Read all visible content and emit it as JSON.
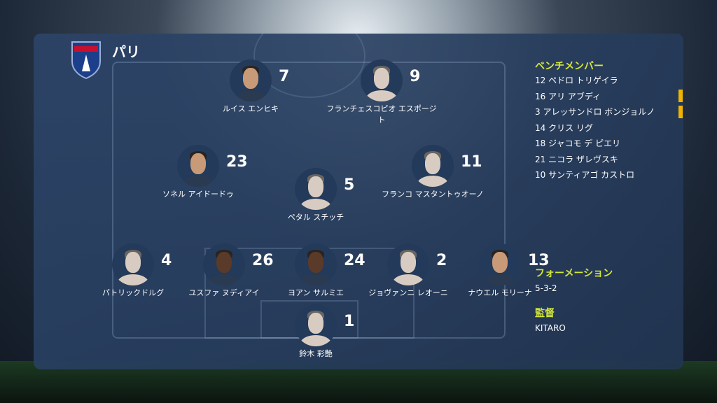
{
  "team": {
    "name": "パリ",
    "logo_text": "PARIS FC"
  },
  "players": [
    {
      "number": "7",
      "name": "ルイス エンヒキ",
      "photo": true
    },
    {
      "number": "9",
      "name": "フランチェスコピオ エスポージト",
      "photo": false
    },
    {
      "number": "23",
      "name": "ソネル アイドードゥ",
      "photo": true
    },
    {
      "number": "11",
      "name": "フランコ マスタントゥオーノ",
      "photo": false
    },
    {
      "number": "5",
      "name": "ペタル スチッチ",
      "photo": false
    },
    {
      "number": "4",
      "name": "パトリックドルグ",
      "photo": false
    },
    {
      "number": "26",
      "name": "ユスファ ヌディアイ",
      "photo": true
    },
    {
      "number": "24",
      "name": "ヨアン サルミエ",
      "photo": true
    },
    {
      "number": "2",
      "name": "ジョヴァンニ レオーニ",
      "photo": false
    },
    {
      "number": "13",
      "name": "ナウエル モリーナ",
      "photo": true
    },
    {
      "number": "1",
      "name": "鈴木 彩艶",
      "photo": false
    }
  ],
  "bench": {
    "title": "ベンチメンバー",
    "items": [
      "12  ペドロ トリゲイラ",
      "16  アリ アブディ",
      "3  アレッサンドロ ボンジョルノ",
      "14  クリス リグ",
      "18  ジャコモ デ ピエリ",
      "21  ニコラ ザレヴスキ",
      "10  サンティアゴ カストロ"
    ]
  },
  "formation": {
    "title": "フォーメーション",
    "value": "5-3-2"
  },
  "manager": {
    "title": "監督",
    "value": "KITARO"
  },
  "colors": {
    "accent": "#d4e63a",
    "marker": "#f0b400"
  }
}
